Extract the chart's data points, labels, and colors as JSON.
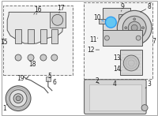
{
  "bg_color": "#ffffff",
  "part_highlight_color": "#4fc3f7",
  "line_color": "#333333",
  "component_color": "#555555",
  "label_color": "#222222",
  "figsize": [
    2.0,
    1.47
  ],
  "dpi": 100
}
